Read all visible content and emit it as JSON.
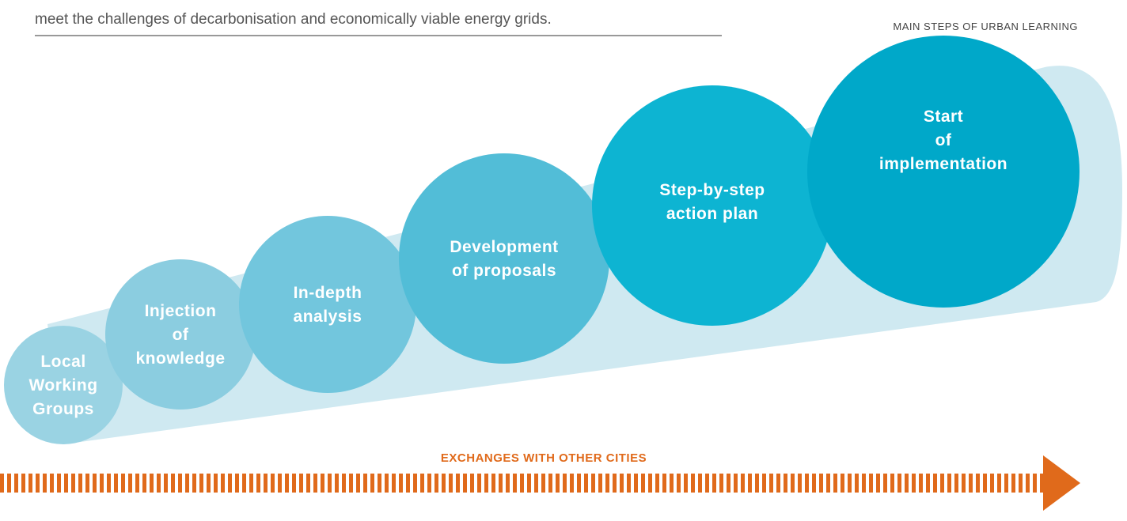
{
  "intro": "meet the challenges of decarbonisation and economically viable energy grids.",
  "caption": "MAIN STEPS OF URBAN LEARNING",
  "steps": [
    [
      "Local",
      "Working",
      "Groups"
    ],
    [
      "Injection",
      "of",
      "knowledge"
    ],
    [
      "In-depth",
      "analysis"
    ],
    [
      "Development",
      "of proposals"
    ],
    [
      "Step-by-step",
      "action plan"
    ],
    [
      "Start",
      "of",
      "implementation"
    ]
  ],
  "arrow_label": "EXCHANGES WITH OTHER CITIES"
}
